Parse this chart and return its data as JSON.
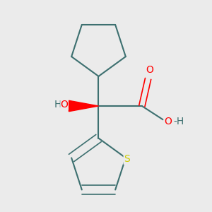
{
  "background_color": "#ebebeb",
  "bond_color": "#3d7070",
  "bond_width": 1.5,
  "atom_colors": {
    "O": "#ff0000",
    "S": "#cccc00",
    "C": "#3d7070",
    "H": "#3d7070"
  },
  "figsize": [
    3.0,
    3.0
  ],
  "dpi": 100,
  "font_size": 10
}
